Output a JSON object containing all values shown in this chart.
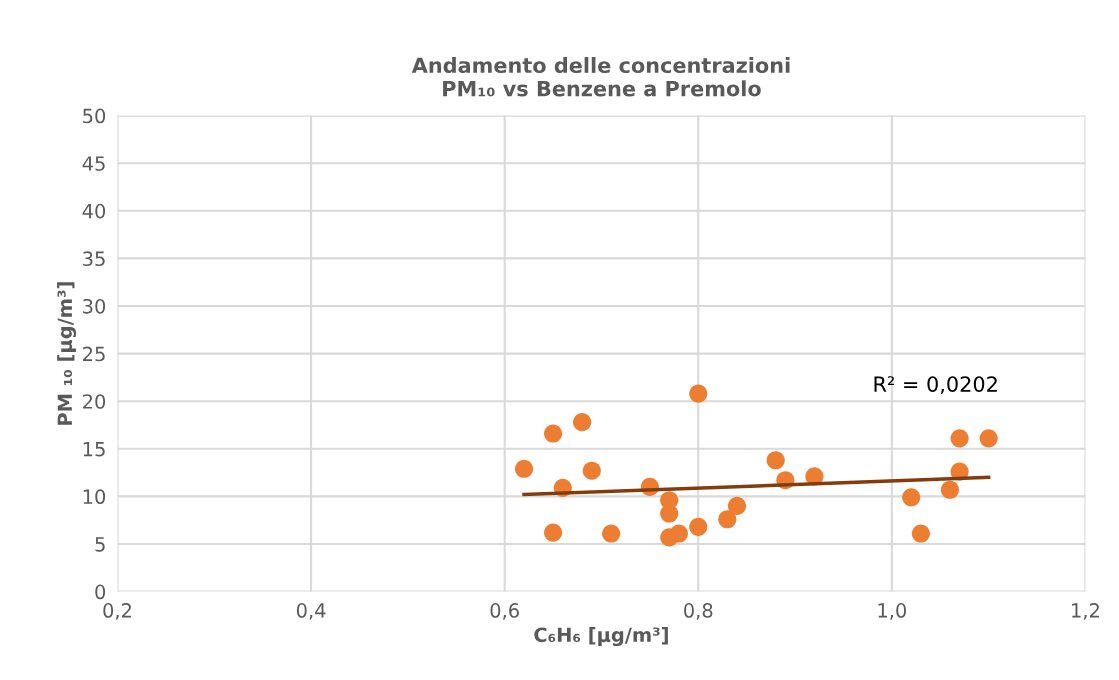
{
  "chart_data": {
    "type": "scatter",
    "title": "Andamento delle concentrazioni\nPM₁₀ vs Benzene a Premolo",
    "xlabel": "C₆H₆ [µg/m³]",
    "ylabel": "PM ₁₀ [µg/m³]",
    "xlim": [
      0.2,
      1.2
    ],
    "xticks": [
      {
        "value": 0.2,
        "label": "0,2"
      },
      {
        "value": 0.4,
        "label": "0,4"
      },
      {
        "value": 0.6,
        "label": "0,6"
      },
      {
        "value": 0.8,
        "label": "0,8"
      },
      {
        "value": 1.0,
        "label": "1,0"
      },
      {
        "value": 1.2,
        "label": "1,2"
      }
    ],
    "ylim": [
      0,
      50
    ],
    "yticks": [
      0,
      5,
      10,
      15,
      20,
      25,
      30,
      35,
      40,
      45,
      50
    ],
    "grid": true,
    "marker": "circle",
    "series": [
      {
        "color": "#ed7d31",
        "x": [
          0.62,
          0.65,
          0.65,
          0.66,
          0.68,
          0.69,
          0.71,
          0.75,
          0.77,
          0.77,
          0.77,
          0.78,
          0.8,
          0.8,
          0.83,
          0.84,
          0.88,
          0.89,
          0.92,
          1.02,
          1.03,
          1.06,
          1.07,
          1.07,
          1.1
        ],
        "values": [
          12.9,
          16.6,
          6.2,
          10.9,
          17.8,
          12.7,
          6.1,
          11.0,
          9.6,
          8.2,
          5.7,
          6.1,
          20.8,
          6.8,
          7.6,
          9.0,
          13.8,
          11.7,
          12.1,
          9.9,
          6.1,
          10.7,
          16.1,
          12.6,
          16.1
        ]
      },
      {
        "type": "line",
        "color": "#843c0c",
        "x": [
          0.62,
          1.1
        ],
        "values": [
          10.2,
          12.0
        ],
        "marker": "none",
        "line_style": "solid"
      }
    ],
    "annotations": [
      "R² = 0,0202"
    ]
  }
}
